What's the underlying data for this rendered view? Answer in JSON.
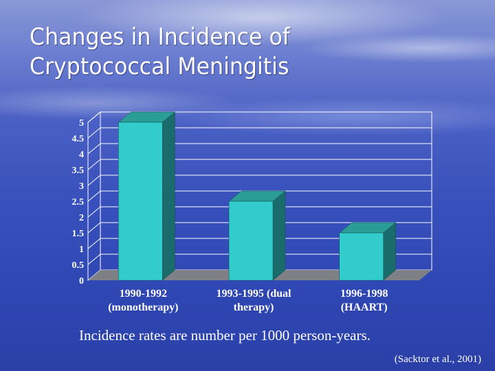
{
  "slide": {
    "title_line1": "Changes in Incidence of",
    "title_line2": "Cryptococcal Meningitis",
    "footnote": "Incidence rates are number per 1000 person-years.",
    "citation": "(Sacktor et al., 2001)"
  },
  "chart_data": {
    "type": "bar",
    "style": "3d",
    "categories": [
      [
        "1990-1992",
        "(monotherapy)"
      ],
      [
        "1993-1995 (dual",
        "therapy)"
      ],
      [
        "1996-1998",
        "(HAART)"
      ]
    ],
    "values": [
      5,
      2.5,
      1.5
    ],
    "ylim": [
      0,
      5
    ],
    "yticks": [
      0,
      0.5,
      1,
      1.5,
      2,
      2.5,
      3,
      3.5,
      4,
      4.5,
      5
    ],
    "ytick_labels": [
      "0",
      "0.5",
      "1",
      "1.5",
      "2",
      "2.5",
      "3",
      "3.5",
      "4",
      "4.5",
      "5"
    ],
    "grid": true,
    "legend": "none",
    "colors": {
      "bar_front": "#33cccc",
      "bar_top": "#2a9d97",
      "bar_side": "#1a6b6b",
      "floor": "#7f7f86",
      "grid": "#ffffff"
    }
  }
}
